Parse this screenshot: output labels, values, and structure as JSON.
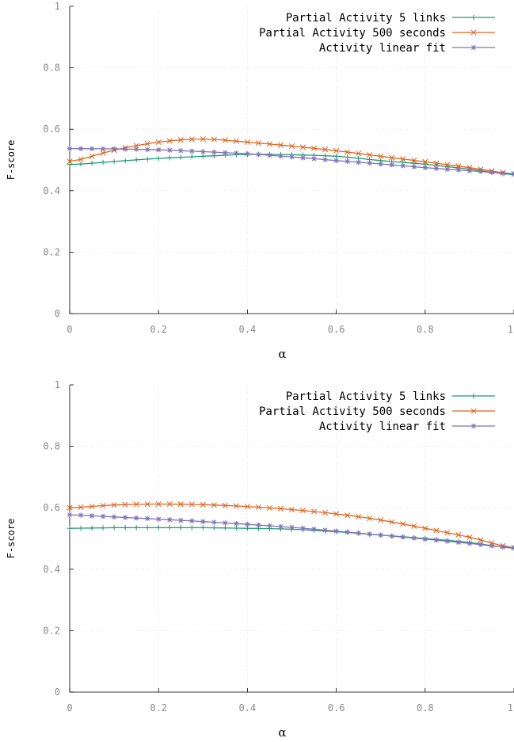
{
  "chart_data": [
    {
      "type": "line",
      "title": "",
      "xlabel": "α",
      "ylabel": "F-score",
      "xlim": [
        0,
        1
      ],
      "ylim": [
        0,
        1
      ],
      "xticks": [
        "0",
        "0.2",
        "0.4",
        "0.6",
        "0.8",
        "1"
      ],
      "yticks": [
        "0",
        "0.2",
        "0.4",
        "0.6",
        "0.8",
        "1"
      ],
      "grid": true,
      "legend": "top-right",
      "x": [
        0,
        0.1,
        0.2,
        0.3,
        0.4,
        0.5,
        0.6,
        0.7,
        0.8,
        0.9,
        1.0
      ],
      "series": [
        {
          "name": "Partial Activity 5 links",
          "color": "#1a9a72",
          "marker": "plus",
          "values": [
            0.485,
            0.495,
            0.505,
            0.512,
            0.518,
            0.517,
            0.512,
            0.498,
            0.486,
            0.47,
            0.452
          ]
        },
        {
          "name": "Partial Activity 500 seconds",
          "color": "#e0641b",
          "marker": "cross",
          "values": [
            0.495,
            0.532,
            0.558,
            0.568,
            0.558,
            0.545,
            0.53,
            0.512,
            0.494,
            0.475,
            0.455
          ]
        },
        {
          "name": "Activity linear fit",
          "color": "#7f72b8",
          "marker": "star",
          "values": [
            0.537,
            0.536,
            0.533,
            0.527,
            0.52,
            0.51,
            0.498,
            0.487,
            0.475,
            0.465,
            0.455
          ]
        }
      ]
    },
    {
      "type": "line",
      "title": "",
      "xlabel": "α",
      "ylabel": "F-score",
      "xlim": [
        0,
        1
      ],
      "ylim": [
        0,
        1
      ],
      "xticks": [
        "0",
        "0.2",
        "0.4",
        "0.6",
        "0.8",
        "1"
      ],
      "yticks": [
        "0",
        "0.2",
        "0.4",
        "0.6",
        "0.8",
        "1"
      ],
      "grid": true,
      "legend": "top-right",
      "x": [
        0,
        0.1,
        0.2,
        0.3,
        0.4,
        0.5,
        0.6,
        0.7,
        0.8,
        0.9,
        1.0
      ],
      "series": [
        {
          "name": "Partial Activity 5 links",
          "color": "#1a9a72",
          "marker": "plus",
          "values": [
            0.533,
            0.535,
            0.535,
            0.535,
            0.533,
            0.53,
            0.522,
            0.511,
            0.5,
            0.487,
            0.468
          ]
        },
        {
          "name": "Partial Activity 500 seconds",
          "color": "#e0641b",
          "marker": "cross",
          "values": [
            0.6,
            0.609,
            0.612,
            0.61,
            0.604,
            0.594,
            0.58,
            0.56,
            0.533,
            0.504,
            0.47
          ]
        },
        {
          "name": "Activity linear fit",
          "color": "#7f72b8",
          "marker": "star",
          "values": [
            0.577,
            0.57,
            0.563,
            0.555,
            0.546,
            0.536,
            0.524,
            0.511,
            0.498,
            0.484,
            0.47
          ]
        }
      ]
    }
  ]
}
